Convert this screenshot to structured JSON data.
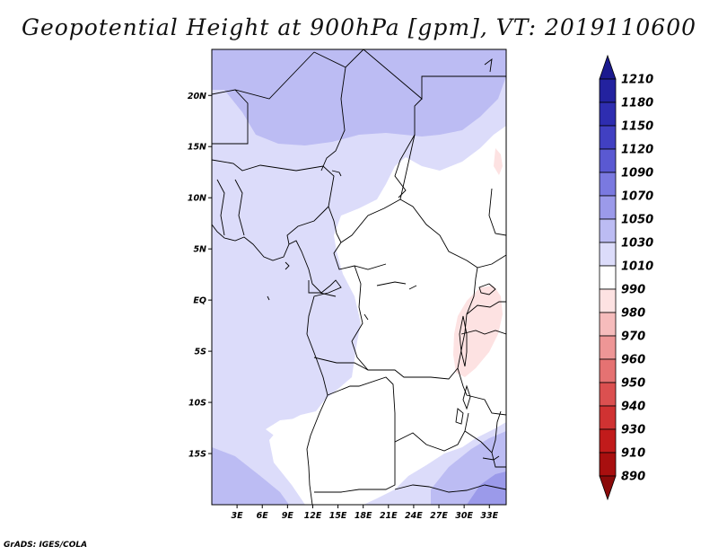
{
  "title": "Geopotential Height at 900hPa [gpm], VT: 2019110600",
  "credit": "GrADS: IGES/COLA",
  "map": {
    "lon_labels": [
      "3E",
      "6E",
      "9E",
      "12E",
      "15E",
      "18E",
      "21E",
      "24E",
      "27E",
      "30E",
      "33E"
    ],
    "lat_labels": [
      "20N",
      "15N",
      "10N",
      "5N",
      "EQ",
      "5S",
      "10S",
      "15S"
    ],
    "lon_range": [
      0,
      35
    ],
    "lat_range": [
      -20,
      24.5
    ]
  },
  "colorbar": {
    "levels": [
      "1210",
      "1180",
      "1150",
      "1120",
      "1090",
      "1070",
      "1050",
      "1030",
      "1010",
      "990",
      "980",
      "970",
      "960",
      "950",
      "940",
      "930",
      "910",
      "890"
    ],
    "colors": [
      "#1b1a8f",
      "#23229f",
      "#2e2db0",
      "#4140c2",
      "#5a59d2",
      "#7a79e0",
      "#9b9aea",
      "#bcbcf3",
      "#dcdcfa",
      "#ffffff",
      "#fde2e2",
      "#f6bcbc",
      "#ee9696",
      "#e57272",
      "#db5050",
      "#d03232",
      "#c11b1b",
      "#a80f0f",
      "#8a0a0a"
    ]
  }
}
